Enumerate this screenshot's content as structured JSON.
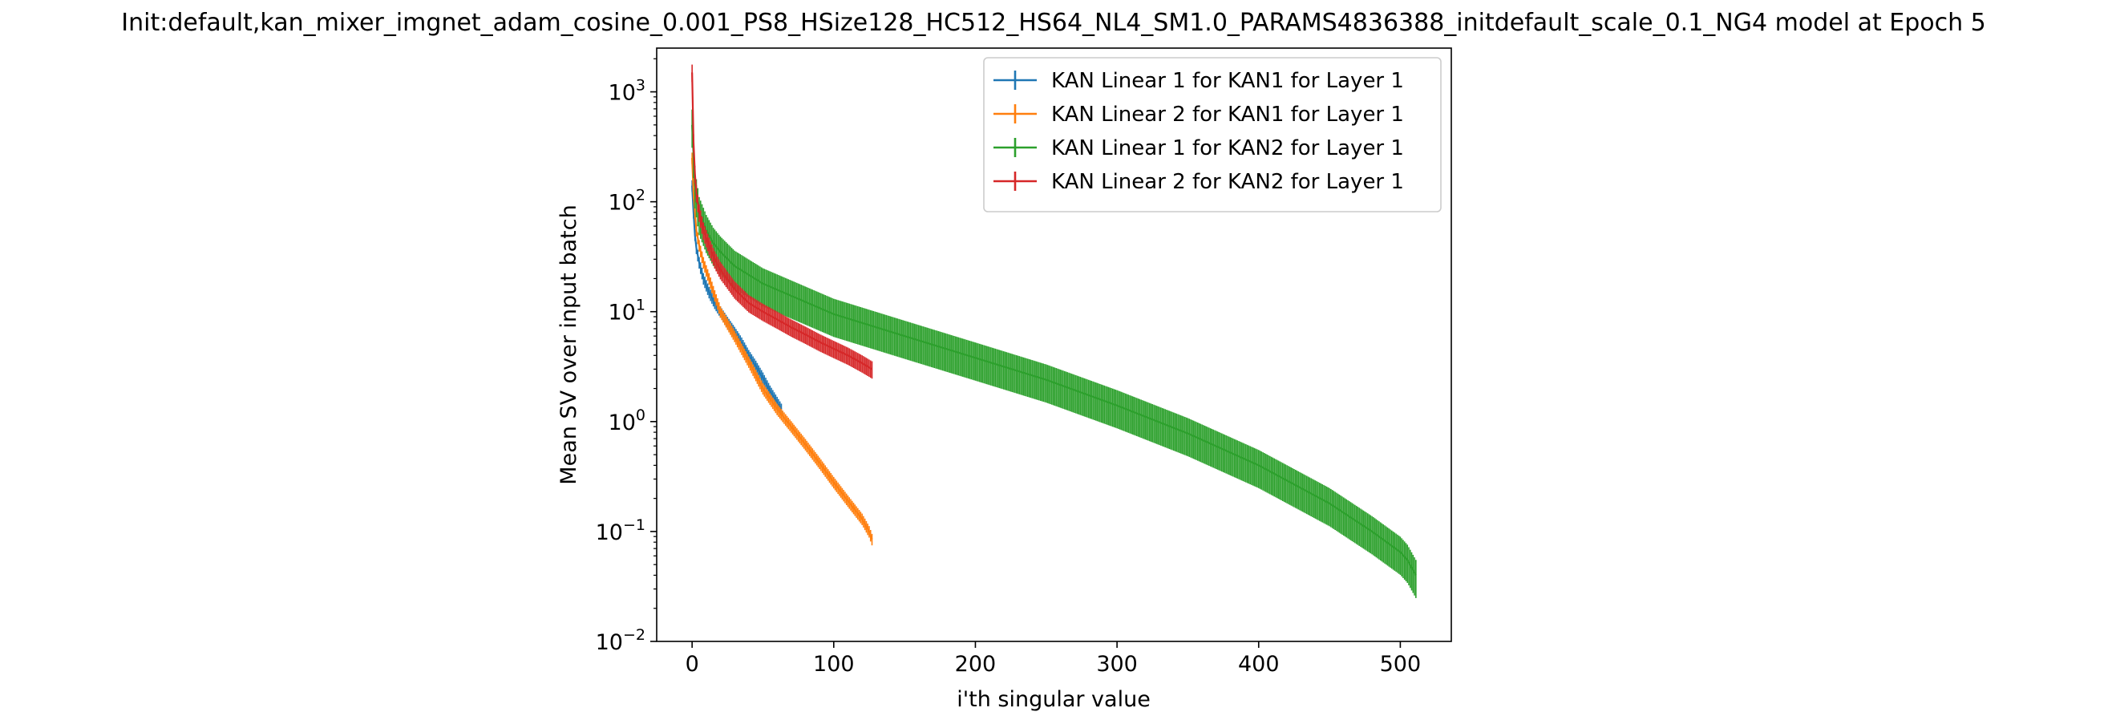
{
  "chart_data": {
    "type": "line",
    "title": "Init:default,kan_mixer_imgnet_adam_cosine_0.001_PS8_HSize128_HC512_HS64_NL4_SM1.0_PARAMS4836388_initdefault_scale_0.1_NG4 model at Epoch 5",
    "xlabel": "i'th singular value",
    "ylabel": "Mean SV over input batch",
    "xlim": [
      -25,
      536
    ],
    "ylim": [
      0.01,
      2500
    ],
    "yscale": "log",
    "xticks": [
      0,
      100,
      200,
      300,
      400,
      500
    ],
    "xtick_labels": [
      "0",
      "100",
      "200",
      "300",
      "400",
      "500"
    ],
    "yticks": [
      0.01,
      0.1,
      1,
      10,
      100,
      1000
    ],
    "ytick_labels": [
      {
        "base": "10",
        "exp": "−2"
      },
      {
        "base": "10",
        "exp": "−1"
      },
      {
        "base": "10",
        "exp": "0"
      },
      {
        "base": "10",
        "exp": "1"
      },
      {
        "base": "10",
        "exp": "2"
      },
      {
        "base": "10",
        "exp": "3"
      }
    ],
    "grid": false,
    "legend_position": "top-right",
    "error_bars": true,
    "series": [
      {
        "name": "KAN Linear 1 for KAN1 for Layer 1",
        "color": "#1f77b4",
        "n_points": 64,
        "x": [
          0,
          1,
          2,
          3,
          5,
          8,
          12,
          16,
          20,
          25,
          30,
          35,
          40,
          45,
          50,
          55,
          60,
          63
        ],
        "y": [
          140,
          80,
          50,
          38,
          28,
          20,
          15,
          12,
          10,
          8,
          6.5,
          5.2,
          4,
          3.2,
          2.5,
          1.9,
          1.5,
          1.3
        ],
        "err_frac": 0.12
      },
      {
        "name": "KAN Linear 2 for KAN1 for Layer 1",
        "color": "#ff7f0e",
        "n_points": 128,
        "x": [
          0,
          1,
          2,
          3,
          5,
          8,
          12,
          16,
          20,
          30,
          40,
          50,
          60,
          70,
          80,
          90,
          100,
          110,
          120,
          125,
          127
        ],
        "y": [
          250,
          120,
          80,
          55,
          40,
          28,
          20,
          14,
          10,
          6,
          3.5,
          2,
          1.3,
          0.9,
          0.62,
          0.42,
          0.28,
          0.19,
          0.13,
          0.1,
          0.085
        ],
        "err_frac": 0.12
      },
      {
        "name": "KAN Linear 1 for KAN2 for Layer 1",
        "color": "#2ca02c",
        "n_points": 512,
        "x": [
          0,
          2,
          5,
          10,
          15,
          20,
          30,
          50,
          100,
          150,
          200,
          250,
          300,
          350,
          400,
          450,
          480,
          500,
          505,
          511
        ],
        "y": [
          500,
          140,
          80,
          55,
          42,
          35,
          26,
          18,
          9.5,
          6,
          3.8,
          2.4,
          1.4,
          0.78,
          0.4,
          0.18,
          0.1,
          0.065,
          0.055,
          0.04
        ],
        "err_frac": 0.38
      },
      {
        "name": "KAN Linear 2 for KAN2 for Layer 1",
        "color": "#d62728",
        "n_points": 128,
        "x": [
          0,
          1,
          2,
          3,
          5,
          8,
          12,
          16,
          20,
          30,
          40,
          50,
          60,
          70,
          80,
          90,
          100,
          110,
          120,
          127
        ],
        "y": [
          1500,
          350,
          180,
          120,
          80,
          55,
          40,
          30,
          24,
          16,
          12,
          10,
          8.5,
          7.2,
          6.2,
          5.3,
          4.6,
          4,
          3.4,
          3
        ],
        "err_frac": 0.18
      }
    ]
  }
}
